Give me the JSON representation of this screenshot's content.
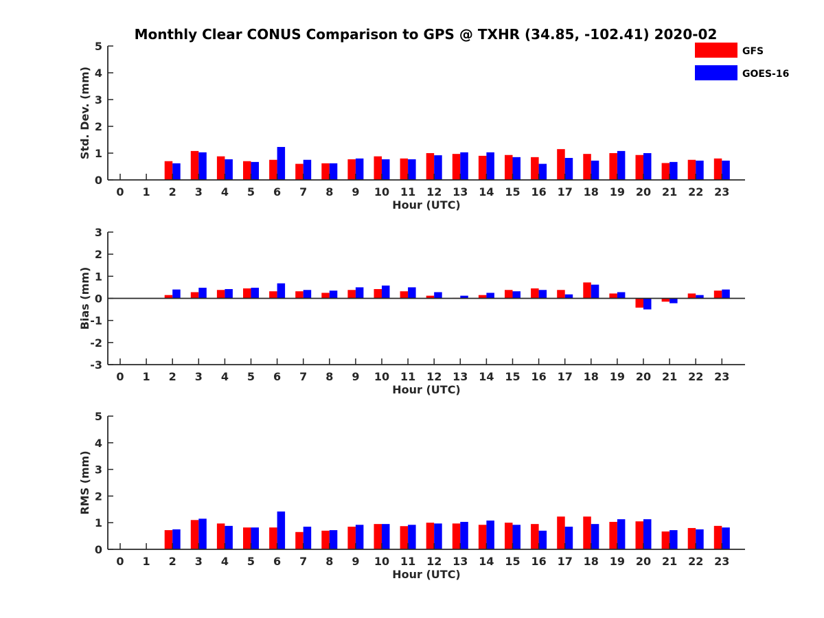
{
  "chart_data": {
    "type": "bar",
    "title": "Monthly Clear CONUS Comparison to GPS @ TXHR (34.85, -102.41) 2020-02",
    "legend": {
      "position": "top-right",
      "entries": [
        {
          "name": "GFS",
          "color": "#ff0000"
        },
        {
          "name": "GOES-16",
          "color": "#0000ff"
        }
      ]
    },
    "categories": [
      "0",
      "1",
      "2",
      "3",
      "4",
      "5",
      "6",
      "7",
      "8",
      "9",
      "10",
      "11",
      "12",
      "13",
      "14",
      "15",
      "16",
      "17",
      "18",
      "19",
      "20",
      "21",
      "22",
      "23"
    ],
    "panels": [
      {
        "ylabel": "Std. Dev. (mm)",
        "xlabel": "Hour (UTC)",
        "ylim": [
          0,
          5
        ],
        "yticks": [
          0,
          1,
          2,
          3,
          4,
          5
        ],
        "series": [
          {
            "name": "GFS",
            "color": "#ff0000",
            "values": [
              null,
              null,
              0.7,
              1.08,
              0.88,
              0.7,
              0.75,
              0.6,
              0.62,
              0.77,
              0.88,
              0.8,
              1.0,
              0.97,
              0.9,
              0.93,
              0.85,
              1.15,
              0.97,
              1.0,
              0.93,
              0.63,
              0.75,
              0.8
            ]
          },
          {
            "name": "GOES-16",
            "color": "#0000ff",
            "values": [
              null,
              null,
              0.62,
              1.03,
              0.77,
              0.67,
              1.23,
              0.75,
              0.62,
              0.8,
              0.77,
              0.77,
              0.92,
              1.03,
              1.03,
              0.85,
              0.6,
              0.82,
              0.72,
              1.08,
              1.0,
              0.67,
              0.72,
              0.72
            ]
          }
        ]
      },
      {
        "ylabel": "Bias (mm)",
        "xlabel": "Hour (UTC)",
        "ylim": [
          -3,
          3
        ],
        "yticks": [
          -3,
          -2,
          -1,
          0,
          1,
          2,
          3
        ],
        "series": [
          {
            "name": "GFS",
            "color": "#ff0000",
            "values": [
              null,
              null,
              0.15,
              0.28,
              0.38,
              0.45,
              0.32,
              0.32,
              0.25,
              0.38,
              0.42,
              0.32,
              0.12,
              0.02,
              0.15,
              0.38,
              0.45,
              0.38,
              0.72,
              0.22,
              -0.42,
              -0.15,
              0.22,
              0.35
            ]
          },
          {
            "name": "GOES-16",
            "color": "#0000ff",
            "values": [
              null,
              null,
              0.4,
              0.48,
              0.42,
              0.48,
              0.68,
              0.38,
              0.35,
              0.5,
              0.58,
              0.5,
              0.28,
              0.12,
              0.25,
              0.32,
              0.38,
              0.18,
              0.62,
              0.28,
              -0.5,
              -0.22,
              0.15,
              0.4
            ]
          }
        ]
      },
      {
        "ylabel": "RMS (mm)",
        "xlabel": "Hour (UTC)",
        "ylim": [
          0,
          5
        ],
        "yticks": [
          0,
          1,
          2,
          3,
          4,
          5
        ],
        "series": [
          {
            "name": "GFS",
            "color": "#ff0000",
            "values": [
              null,
              null,
              0.72,
              1.1,
              0.97,
              0.82,
              0.82,
              0.65,
              0.7,
              0.85,
              0.95,
              0.87,
              1.0,
              0.97,
              0.92,
              1.0,
              0.95,
              1.23,
              1.23,
              1.03,
              1.05,
              0.67,
              0.8,
              0.88
            ]
          },
          {
            "name": "GOES-16",
            "color": "#0000ff",
            "values": [
              null,
              null,
              0.75,
              1.15,
              0.88,
              0.82,
              1.42,
              0.85,
              0.72,
              0.92,
              0.95,
              0.92,
              0.97,
              1.03,
              1.08,
              0.92,
              0.7,
              0.85,
              0.95,
              1.13,
              1.13,
              0.72,
              0.75,
              0.82
            ]
          }
        ]
      }
    ]
  }
}
